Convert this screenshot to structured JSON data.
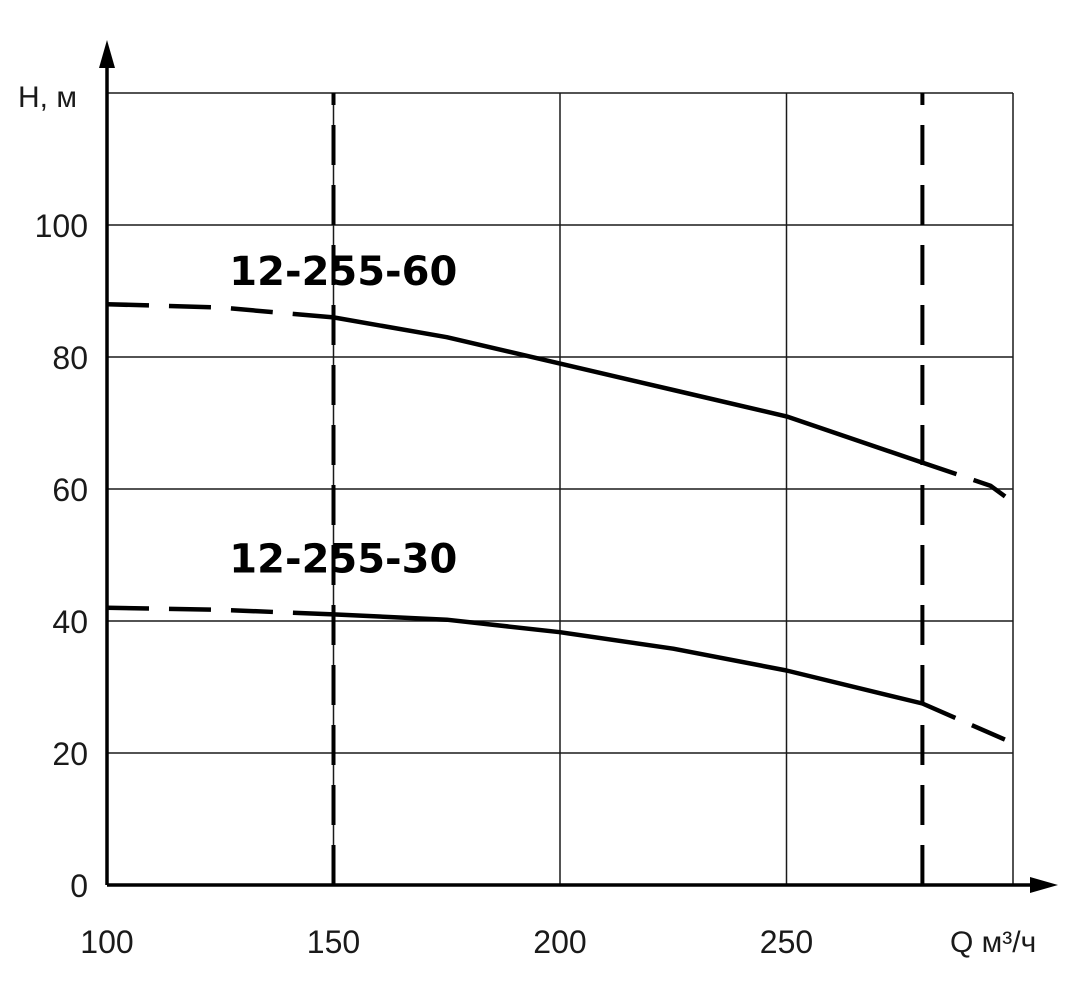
{
  "chart_data": {
    "type": "line",
    "xlabel": "Q м³/ч",
    "ylabel": "H, м",
    "xlim": [
      100,
      300
    ],
    "ylim": [
      0,
      120
    ],
    "x_ticks": [
      {
        "value": 100,
        "label": "100"
      },
      {
        "value": 150,
        "label": "150"
      },
      {
        "value": 200,
        "label": "200"
      },
      {
        "value": 250,
        "label": "250"
      }
    ],
    "y_ticks": [
      {
        "value": 0,
        "label": "0"
      },
      {
        "value": 20,
        "label": "20"
      },
      {
        "value": 40,
        "label": "40"
      },
      {
        "value": 60,
        "label": "60"
      },
      {
        "value": 80,
        "label": "80"
      },
      {
        "value": 100,
        "label": "100"
      }
    ],
    "grid": true,
    "reference_lines": [
      {
        "x": 150,
        "style": "dashed"
      },
      {
        "x": 280,
        "style": "dashed"
      }
    ],
    "series": [
      {
        "name": "12-255-60",
        "label_at": {
          "x": 127,
          "y": 93
        },
        "dashed_start": {
          "x": [
            100,
            125,
            150
          ],
          "y": [
            88,
            87.5,
            86
          ]
        },
        "solid": {
          "x": [
            150,
            175,
            200,
            225,
            250,
            280
          ],
          "y": [
            86,
            83,
            79,
            75,
            71,
            64
          ]
        },
        "dashed_end": {
          "x": [
            280,
            295,
            300
          ],
          "y": [
            64,
            60.5,
            58
          ]
        }
      },
      {
        "name": "12-255-30",
        "label_at": {
          "x": 127,
          "y": 49.5
        },
        "dashed_start": {
          "x": [
            100,
            125,
            150
          ],
          "y": [
            42,
            41.7,
            41
          ]
        },
        "solid": {
          "x": [
            150,
            175,
            200,
            225,
            250,
            280
          ],
          "y": [
            41,
            40.2,
            38.3,
            35.8,
            32.5,
            27.5
          ]
        },
        "dashed_end": {
          "x": [
            280,
            300
          ],
          "y": [
            27.5,
            21.5
          ]
        }
      }
    ]
  }
}
